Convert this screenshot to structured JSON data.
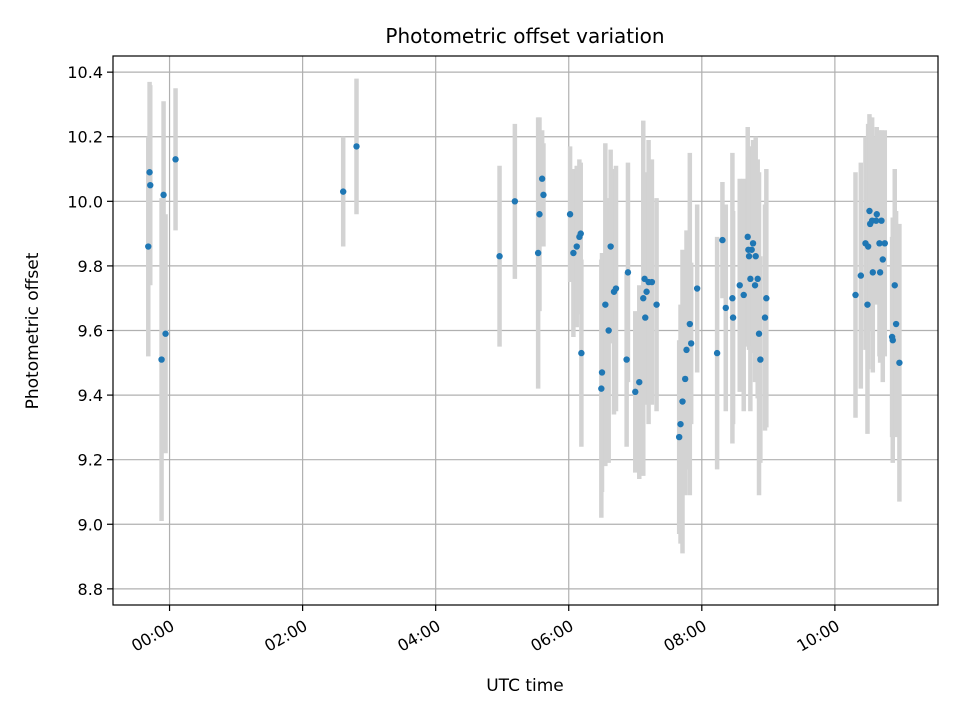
{
  "chart_data": {
    "type": "scatter",
    "title": "Photometric offset variation",
    "xlabel": "UTC time",
    "ylabel": "Photometric offset",
    "xlim": [
      -0.85,
      11.55
    ],
    "ylim": [
      8.75,
      10.45
    ],
    "x_ticks": [
      {
        "value": 0,
        "label": "00:00"
      },
      {
        "value": 2,
        "label": "02:00"
      },
      {
        "value": 4,
        "label": "04:00"
      },
      {
        "value": 6,
        "label": "06:00"
      },
      {
        "value": 8,
        "label": "08:00"
      },
      {
        "value": 10,
        "label": "10:00"
      }
    ],
    "y_ticks": [
      {
        "value": 8.8,
        "label": "8.8"
      },
      {
        "value": 9.0,
        "label": "9.0"
      },
      {
        "value": 9.2,
        "label": "9.2"
      },
      {
        "value": 9.4,
        "label": "9.4"
      },
      {
        "value": 9.6,
        "label": "9.6"
      },
      {
        "value": 9.8,
        "label": "9.8"
      },
      {
        "value": 10.0,
        "label": "10.0"
      },
      {
        "value": 10.2,
        "label": "10.2"
      },
      {
        "value": 10.4,
        "label": "10.4"
      }
    ],
    "grid": true,
    "point_color": "#1f77b4",
    "errorbar_color": "#d3d3d3",
    "points": [
      [
        -0.32,
        9.86,
        0.34
      ],
      [
        -0.3,
        10.09,
        0.28
      ],
      [
        -0.29,
        10.05,
        0.31
      ],
      [
        -0.12,
        9.51,
        0.5
      ],
      [
        -0.09,
        10.02,
        0.29
      ],
      [
        -0.06,
        9.59,
        0.37
      ],
      [
        0.09,
        10.13,
        0.22
      ],
      [
        2.61,
        10.03,
        0.17
      ],
      [
        2.81,
        10.17,
        0.21
      ],
      [
        4.96,
        9.83,
        0.28
      ],
      [
        5.19,
        10.0,
        0.24
      ],
      [
        5.54,
        9.84,
        0.42
      ],
      [
        5.56,
        9.96,
        0.3
      ],
      [
        5.6,
        10.07,
        0.15
      ],
      [
        5.62,
        10.02,
        0.16
      ],
      [
        6.02,
        9.96,
        0.21
      ],
      [
        6.07,
        9.84,
        0.26
      ],
      [
        6.12,
        9.86,
        0.25
      ],
      [
        6.16,
        9.89,
        0.24
      ],
      [
        6.18,
        9.9,
        0.22
      ],
      [
        6.19,
        9.53,
        0.29
      ],
      [
        6.49,
        9.42,
        0.4
      ],
      [
        6.5,
        9.47,
        0.37
      ],
      [
        6.55,
        9.68,
        0.5
      ],
      [
        6.6,
        9.6,
        0.41
      ],
      [
        6.63,
        9.86,
        0.3
      ],
      [
        6.68,
        9.72,
        0.38
      ],
      [
        6.71,
        9.73,
        0.38
      ],
      [
        6.87,
        9.51,
        0.27
      ],
      [
        6.89,
        9.78,
        0.34
      ],
      [
        7.0,
        9.41,
        0.25
      ],
      [
        7.06,
        9.44,
        0.3
      ],
      [
        7.12,
        9.7,
        0.55
      ],
      [
        7.14,
        9.76,
        0.33
      ],
      [
        7.15,
        9.64,
        0.27
      ],
      [
        7.17,
        9.72,
        0.34
      ],
      [
        7.2,
        9.75,
        0.44
      ],
      [
        7.25,
        9.75,
        0.38
      ],
      [
        7.32,
        9.68,
        0.33
      ],
      [
        7.66,
        9.27,
        0.3
      ],
      [
        7.68,
        9.31,
        0.37
      ],
      [
        7.71,
        9.38,
        0.47
      ],
      [
        7.75,
        9.45,
        0.36
      ],
      [
        7.77,
        9.54,
        0.37
      ],
      [
        7.82,
        9.62,
        0.53
      ],
      [
        7.84,
        9.56,
        0.25
      ],
      [
        7.93,
        9.73,
        0.26
      ],
      [
        8.23,
        9.53,
        0.36
      ],
      [
        8.31,
        9.88,
        0.18
      ],
      [
        8.36,
        9.67,
        0.32
      ],
      [
        8.46,
        9.7,
        0.45
      ],
      [
        8.47,
        9.64,
        0.33
      ],
      [
        8.57,
        9.74,
        0.33
      ],
      [
        8.63,
        9.71,
        0.36
      ],
      [
        8.69,
        9.89,
        0.34
      ],
      [
        8.7,
        9.85,
        0.29
      ],
      [
        8.71,
        9.83,
        0.29
      ],
      [
        8.73,
        9.76,
        0.41
      ],
      [
        8.75,
        9.85,
        0.32
      ],
      [
        8.77,
        9.87,
        0.32
      ],
      [
        8.8,
        9.74,
        0.3
      ],
      [
        8.81,
        9.83,
        0.37
      ],
      [
        8.84,
        9.76,
        0.37
      ],
      [
        8.86,
        9.59,
        0.5
      ],
      [
        8.88,
        9.51,
        0.32
      ],
      [
        8.95,
        9.64,
        0.35
      ],
      [
        8.97,
        9.7,
        0.4
      ],
      [
        10.31,
        9.71,
        0.38
      ],
      [
        10.39,
        9.77,
        0.35
      ],
      [
        10.46,
        9.87,
        0.33
      ],
      [
        10.49,
        9.68,
        0.4
      ],
      [
        10.5,
        9.86,
        0.38
      ],
      [
        10.52,
        9.97,
        0.3
      ],
      [
        10.53,
        9.93,
        0.33
      ],
      [
        10.56,
        9.94,
        0.32
      ],
      [
        10.57,
        9.78,
        0.31
      ],
      [
        10.62,
        9.94,
        0.26
      ],
      [
        10.63,
        9.96,
        0.27
      ],
      [
        10.67,
        9.87,
        0.35
      ],
      [
        10.68,
        9.78,
        0.28
      ],
      [
        10.7,
        9.94,
        0.28
      ],
      [
        10.72,
        9.82,
        0.38
      ],
      [
        10.75,
        9.87,
        0.35
      ],
      [
        10.86,
        9.58,
        0.31
      ],
      [
        10.87,
        9.57,
        0.38
      ],
      [
        10.9,
        9.74,
        0.36
      ],
      [
        10.92,
        9.62,
        0.35
      ],
      [
        10.97,
        9.5,
        0.43
      ]
    ]
  }
}
